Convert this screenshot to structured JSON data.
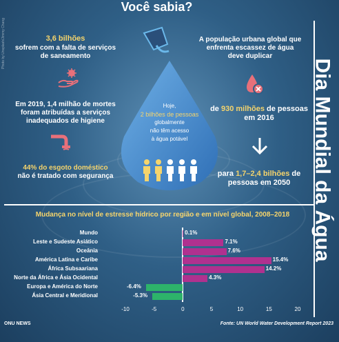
{
  "header": {
    "title": "Você sabia?"
  },
  "side_title": "Dia Mundial da Água",
  "photo_credit": "Photo by Unsplash/Jimmy Chang",
  "facts_left": {
    "f1_value": "3,6 bilhões",
    "f1_text": "sofrem com a falta de serviços de saneamento",
    "f2_text": "Em 2019, 1,4 milhão de mortes foram atribuídas a serviços inadequados de higiene",
    "f3_value": "44% do esgoto doméstico",
    "f3_text": "não é tratado com segurança"
  },
  "facts_right": {
    "r1_text": "A população urbana global que enfrenta escassez de água deve duplicar",
    "r2_value": "930 milhões",
    "r2_prefix": "de",
    "r2_text": "de pessoas em 2016",
    "r3_prefix": "para",
    "r3_value": "1,7–2,4 bilhões",
    "r3_text": "de pessoas em 2050"
  },
  "drop": {
    "line1": "Hoje,",
    "line2": "2 bilhões de pessoas",
    "line3": "globalmente",
    "line4": "não têm acesso",
    "line5": "à água potável",
    "figures_total": 5,
    "figures_highlighted": 2
  },
  "colors": {
    "yellow": "#f5d46c",
    "drop": "#4a8fd0",
    "magenta": "#b0318f",
    "green": "#2db36a"
  },
  "icons": [
    "glass-water-icon",
    "hand-bacteria-icon",
    "pipe-sewage-icon",
    "water-drop-x-icon",
    "arrow-down-icon",
    "people-icon"
  ],
  "chart_data": {
    "type": "bar",
    "orientation": "horizontal",
    "title": "Mudança no nível de estresse hídrico por região e em nível global, 2008–2018",
    "categories": [
      "Mundo",
      "Leste e Sudeste Asiático",
      "Oceânia",
      "América Latina e Caribe",
      "África Subsaariana",
      "Norte da África e Ásia Ocidental",
      "Europa e América do Norte",
      "Ásia Central e Meridional"
    ],
    "values": [
      0.1,
      7.1,
      7.6,
      15.4,
      14.2,
      4.3,
      -6.4,
      -5.3
    ],
    "labels": [
      "0.1%",
      "7.1%",
      "7.6%",
      "15.4%",
      "14.2%",
      "4.3%",
      "-6.4%",
      "-5.3%"
    ],
    "xlim": [
      -10,
      20
    ],
    "xticks": [
      -10,
      -5,
      0,
      5,
      10,
      15,
      20
    ],
    "xlabel": "",
    "ylabel": "",
    "grid": false
  },
  "footer": {
    "left": "ONU NEWS",
    "right": "Fonte: UN World Water Development Report 2023"
  }
}
